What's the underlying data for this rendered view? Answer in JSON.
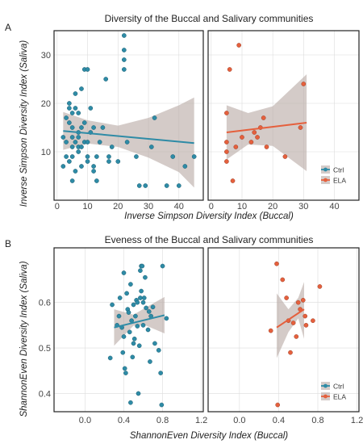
{
  "chart_data": [
    {
      "panel_label": "A",
      "type": "scatter",
      "title": "Diversity of the Buccal and Salivary communities",
      "xlabel": "Inverse Simpson Diversity Index (Buccal)",
      "ylabel": "Inverse Simpson Diversity Index (Saliva)",
      "grid": true,
      "legend_position": "bottom-right",
      "facets": [
        {
          "group": "Ctrl",
          "color": "#2e8ba6",
          "xlim": [
            -1,
            48
          ],
          "ylim": [
            0,
            35
          ],
          "xticks": [
            "0",
            "10",
            "20",
            "30",
            "40"
          ],
          "xtick_values": [
            0,
            10,
            20,
            30,
            40
          ],
          "yticks": [
            "10",
            "20",
            "30"
          ],
          "ytick_values": [
            10,
            20,
            30
          ],
          "points": [
            [
              2,
              7
            ],
            [
              2,
              13
            ],
            [
              3,
              12
            ],
            [
              3,
              9
            ],
            [
              3,
              17
            ],
            [
              4,
              8
            ],
            [
              4,
              16
            ],
            [
              4,
              19
            ],
            [
              4,
              20
            ],
            [
              5,
              9
            ],
            [
              5,
              13
            ],
            [
              5,
              15
            ],
            [
              5,
              18
            ],
            [
              5,
              11
            ],
            [
              5,
              4
            ],
            [
              6,
              6
            ],
            [
              6,
              19
            ],
            [
              6,
              12
            ],
            [
              6,
              22
            ],
            [
              7,
              11
            ],
            [
              7,
              10
            ],
            [
              7,
              14
            ],
            [
              7,
              13
            ],
            [
              7,
              18
            ],
            [
              8,
              23
            ],
            [
              8,
              7
            ],
            [
              8,
              15
            ],
            [
              8,
              11
            ],
            [
              9,
              27
            ],
            [
              9,
              12
            ],
            [
              9,
              16
            ],
            [
              10,
              12
            ],
            [
              10,
              8
            ],
            [
              10,
              9
            ],
            [
              10,
              27
            ],
            [
              11,
              19
            ],
            [
              11,
              14
            ],
            [
              12,
              7
            ],
            [
              12,
              6
            ],
            [
              12,
              15
            ],
            [
              13,
              9
            ],
            [
              13,
              4
            ],
            [
              14,
              12
            ],
            [
              15,
              15
            ],
            [
              16,
              25
            ],
            [
              17,
              8
            ],
            [
              17,
              9
            ],
            [
              18,
              11
            ],
            [
              20,
              8
            ],
            [
              22,
              34
            ],
            [
              22,
              31
            ],
            [
              22,
              29
            ],
            [
              22,
              27
            ],
            [
              23,
              12
            ],
            [
              26,
              9
            ],
            [
              27,
              3
            ],
            [
              29,
              3
            ],
            [
              31,
              11
            ],
            [
              32,
              17
            ],
            [
              36,
              3
            ],
            [
              38,
              9
            ],
            [
              40,
              3
            ],
            [
              42,
              7
            ],
            [
              45,
              9
            ]
          ],
          "fit": {
            "x": [
              2,
              45
            ],
            "y": [
              14.3,
              11.8
            ]
          },
          "band": {
            "x": [
              2,
              10,
              20,
              30,
              40,
              45
            ],
            "upper": [
              18.2,
              16.5,
              15.4,
              17.0,
              19.6,
              21.2
            ],
            "lower": [
              10.4,
              11.7,
              11.0,
              8.8,
              5.8,
              2.6
            ]
          }
        },
        {
          "group": "ELA",
          "color": "#e5603d",
          "xlim": [
            -1,
            48
          ],
          "ylim": [
            0,
            35
          ],
          "xticks": [
            "0",
            "10",
            "20",
            "30",
            "40"
          ],
          "xtick_values": [
            0,
            10,
            20,
            30,
            40
          ],
          "yticks": [],
          "ytick_values": [],
          "points": [
            [
              5,
              18
            ],
            [
              5,
              12
            ],
            [
              5,
              8
            ],
            [
              5,
              10
            ],
            [
              6,
              27
            ],
            [
              7,
              4
            ],
            [
              8,
              11
            ],
            [
              9,
              32
            ],
            [
              10,
              13
            ],
            [
              13,
              12
            ],
            [
              14,
              14
            ],
            [
              15,
              13
            ],
            [
              16,
              15
            ],
            [
              17,
              17
            ],
            [
              18,
              11
            ],
            [
              24,
              9
            ],
            [
              29,
              15
            ],
            [
              30,
              24
            ]
          ],
          "fit": {
            "x": [
              5,
              31
            ],
            "y": [
              14.0,
              16.0
            ]
          },
          "band": {
            "x": [
              5,
              12,
              20,
              31
            ],
            "upper": [
              19.6,
              18.0,
              19.4,
              26.0
            ],
            "lower": [
              8.4,
              11.5,
              11.2,
              6.0
            ]
          }
        }
      ],
      "legend": [
        {
          "label": "Ctrl",
          "color": "#2e8ba6"
        },
        {
          "label": "ELA",
          "color": "#e5603d"
        }
      ]
    },
    {
      "panel_label": "B",
      "type": "scatter",
      "title": "Eveness of the Buccal and Salivary communities",
      "xlabel": "ShannonEven Diversity Index (Buccal)",
      "ylabel": "ShannonEven Diversity Index (Saliva)",
      "grid": true,
      "legend_position": "bottom-right",
      "facets": [
        {
          "group": "Ctrl",
          "color": "#2e8ba6",
          "xlim": [
            -0.32,
            1.22
          ],
          "ylim": [
            0.36,
            0.72
          ],
          "xticks": [
            "0.0",
            "0.4",
            "0.8",
            "1.2"
          ],
          "xtick_values": [
            0.0,
            0.4,
            0.8,
            1.2
          ],
          "yticks": [
            "0.4",
            "0.5",
            "0.6"
          ],
          "ytick_values": [
            0.4,
            0.5,
            0.6
          ],
          "points": [
            [
              0.26,
              0.478
            ],
            [
              0.28,
              0.595
            ],
            [
              0.33,
              0.55
            ],
            [
              0.35,
              0.57
            ],
            [
              0.36,
              0.61
            ],
            [
              0.38,
              0.545
            ],
            [
              0.39,
              0.49
            ],
            [
              0.4,
              0.525
            ],
            [
              0.4,
              0.665
            ],
            [
              0.41,
              0.455
            ],
            [
              0.42,
              0.445
            ],
            [
              0.43,
              0.62
            ],
            [
              0.44,
              0.585
            ],
            [
              0.45,
              0.578
            ],
            [
              0.46,
              0.535
            ],
            [
              0.47,
              0.38
            ],
            [
              0.47,
              0.64
            ],
            [
              0.48,
              0.56
            ],
            [
              0.49,
              0.48
            ],
            [
              0.5,
              0.595
            ],
            [
              0.5,
              0.51
            ],
            [
              0.51,
              0.52
            ],
            [
              0.52,
              0.57
            ],
            [
              0.53,
              0.605
            ],
            [
              0.54,
              0.548
            ],
            [
              0.54,
              0.6
            ],
            [
              0.55,
              0.4
            ],
            [
              0.56,
              0.505
            ],
            [
              0.57,
              0.61
            ],
            [
              0.57,
              0.67
            ],
            [
              0.58,
              0.625
            ],
            [
              0.58,
              0.68
            ],
            [
              0.59,
              0.68
            ],
            [
              0.6,
              0.6
            ],
            [
              0.6,
              0.55
            ],
            [
              0.61,
              0.61
            ],
            [
              0.62,
              0.655
            ],
            [
              0.63,
              0.588
            ],
            [
              0.65,
              0.54
            ],
            [
              0.66,
              0.58
            ],
            [
              0.67,
              0.47
            ],
            [
              0.68,
              0.57
            ],
            [
              0.7,
              0.59
            ],
            [
              0.72,
              0.51
            ],
            [
              0.76,
              0.495
            ],
            [
              0.78,
              0.445
            ],
            [
              0.8,
              0.68
            ],
            [
              0.79,
              0.375
            ],
            [
              0.84,
              0.565
            ]
          ],
          "fit": {
            "x": [
              0.3,
              0.82
            ],
            "y": [
              0.545,
              0.572
            ]
          },
          "band": {
            "x": [
              0.3,
              0.5,
              0.62,
              0.82
            ],
            "upper": [
              0.585,
              0.573,
              0.588,
              0.612
            ],
            "lower": [
              0.505,
              0.549,
              0.55,
              0.532
            ]
          }
        },
        {
          "group": "ELA",
          "color": "#e5603d",
          "xlim": [
            -0.32,
            1.22
          ],
          "ylim": [
            0.36,
            0.72
          ],
          "xticks": [
            "0.0",
            "0.4",
            "0.8",
            "1.2"
          ],
          "xtick_values": [
            0.0,
            0.4,
            0.8,
            1.2
          ],
          "yticks": [],
          "ytick_values": [],
          "points": [
            [
              0.32,
              0.538
            ],
            [
              0.38,
              0.685
            ],
            [
              0.39,
              0.375
            ],
            [
              0.44,
              0.65
            ],
            [
              0.48,
              0.61
            ],
            [
              0.5,
              0.56
            ],
            [
              0.52,
              0.49
            ],
            [
              0.55,
              0.555
            ],
            [
              0.58,
              0.525
            ],
            [
              0.6,
              0.6
            ],
            [
              0.62,
              0.585
            ],
            [
              0.65,
              0.605
            ],
            [
              0.67,
              0.57
            ],
            [
              0.68,
              0.55
            ],
            [
              0.75,
              0.56
            ],
            [
              0.82,
              0.635
            ]
          ],
          "fit": {
            "x": [
              0.38,
              0.66
            ],
            "y": [
              0.545,
              0.585
            ]
          },
          "band": {
            "x": [
              0.38,
              0.5,
              0.6,
              0.66
            ],
            "upper": [
              0.62,
              0.585,
              0.61,
              0.645
            ],
            "lower": [
              0.478,
              0.535,
              0.565,
              0.52
            ]
          }
        }
      ],
      "legend": [
        {
          "label": "Ctrl",
          "color": "#2e8ba6"
        },
        {
          "label": "ELA",
          "color": "#e5603d"
        }
      ]
    }
  ]
}
